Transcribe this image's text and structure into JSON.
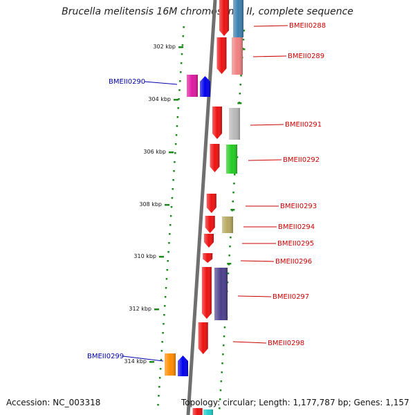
{
  "title": "Brucella melitensis 16M chromosome II, complete sequence",
  "footer": {
    "accession": "Accession: NC_003318",
    "stats": "Topology: circular; Length: 1,177,787 bp; Genes: 1,157"
  },
  "ticks": [
    "302 kbp",
    "304 kbp",
    "306 kbp",
    "308 kbp",
    "310 kbp",
    "312 kbp",
    "314 kbp"
  ],
  "colors": {
    "backbone": "#888888",
    "tick_dots": "#1a8a1a",
    "forward_label": "#cc0000",
    "reverse_label": "#0000aa"
  },
  "genes": [
    {
      "id": "BMEII0288",
      "strand": "forward",
      "color": "#3d7fb0"
    },
    {
      "id": "BMEII0289",
      "strand": "forward",
      "color": "#f08080"
    },
    {
      "id": "BMEII0290",
      "strand": "reverse",
      "color": "#dd1aa0"
    },
    {
      "id": "BMEII0291",
      "strand": "forward",
      "color": "#b8b8b8"
    },
    {
      "id": "BMEII0292",
      "strand": "forward",
      "color": "#22cc22"
    },
    {
      "id": "BMEII0293",
      "strand": "forward",
      "color": "#ee1111"
    },
    {
      "id": "BMEII0294",
      "strand": "forward",
      "color": "#b5a860"
    },
    {
      "id": "BMEII0295",
      "strand": "forward",
      "color": "#ee1111"
    },
    {
      "id": "BMEII0296",
      "strand": "forward",
      "color": "#ee1111"
    },
    {
      "id": "BMEII0297",
      "strand": "forward",
      "color": "#4b3f8c"
    },
    {
      "id": "BMEII0298",
      "strand": "forward",
      "color": "#ee1111"
    },
    {
      "id": "BMEII0299",
      "strand": "reverse",
      "color": "#ff8c00"
    }
  ]
}
